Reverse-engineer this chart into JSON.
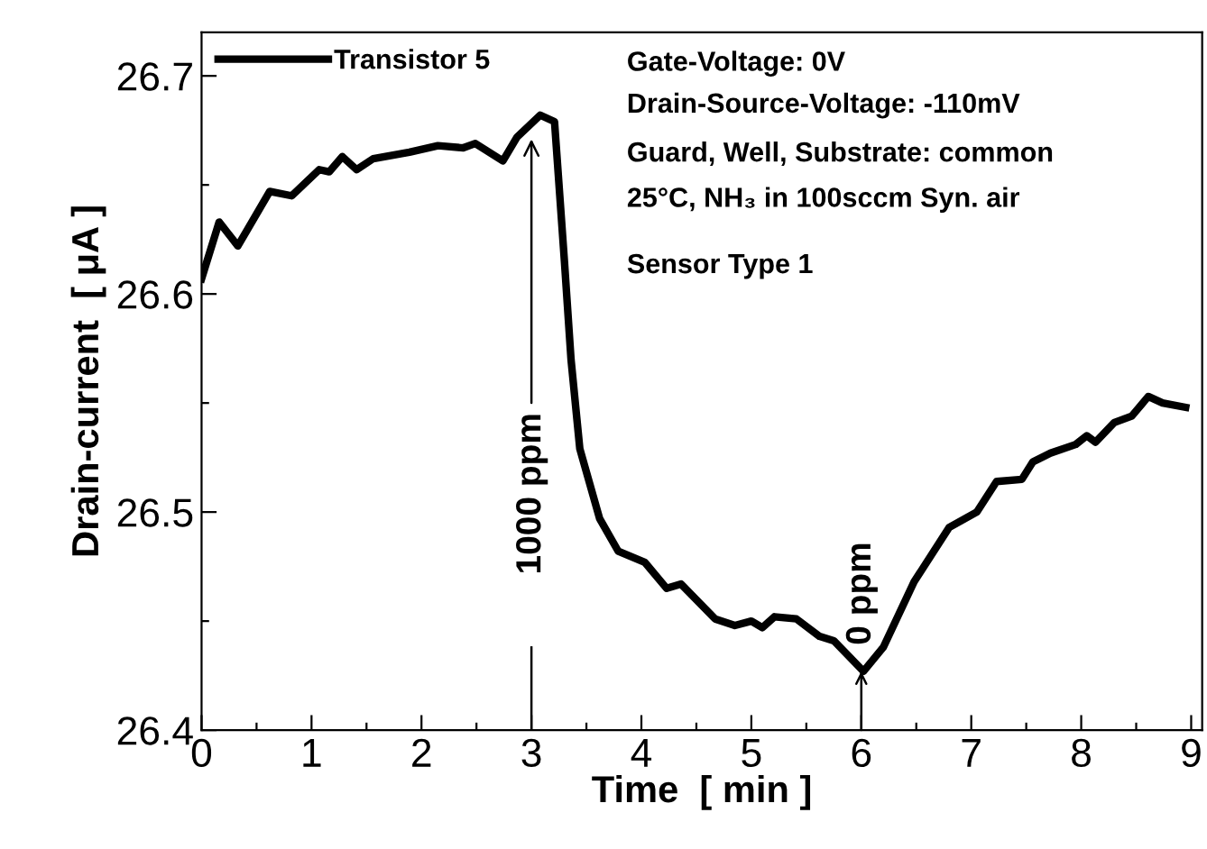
{
  "chart_data": {
    "type": "line",
    "xlabel": "Time  [ min ]",
    "ylabel": "Drain-current  [ μA ]",
    "xlim": [
      0,
      9.1
    ],
    "ylim": [
      26.4,
      26.72
    ],
    "xticks": [
      0,
      {
        "value": 0.5,
        "label": null
      },
      1,
      {
        "value": 1.5,
        "label": null
      },
      2,
      {
        "value": 2.5,
        "label": null
      },
      3,
      {
        "value": 3.5,
        "label": null
      },
      4,
      {
        "value": 4.5,
        "label": null
      },
      5,
      {
        "value": 5.5,
        "label": null
      },
      6,
      {
        "value": 6.5,
        "label": null
      },
      7,
      {
        "value": 7.5,
        "label": null
      },
      8,
      {
        "value": 8.5,
        "label": null
      },
      9
    ],
    "yticks": [
      26.4,
      {
        "value": 26.45,
        "label": null
      },
      26.5,
      {
        "value": 26.55,
        "label": null
      },
      26.6,
      {
        "value": 26.65,
        "label": null
      },
      26.7
    ],
    "grid": false,
    "legend": "top left",
    "marker": "none",
    "line_style": "solid",
    "series": [
      {
        "name": "Transistor 5",
        "color": "#000000",
        "x": [
          0,
          0.16,
          0.33,
          0.62,
          0.82,
          1.07,
          1.16,
          1.28,
          1.41,
          1.56,
          1.89,
          2.15,
          2.38,
          2.49,
          2.74,
          2.87,
          3.08,
          3.21,
          3.3,
          3.36,
          3.44,
          3.62,
          3.79,
          4.03,
          4.23,
          4.36,
          4.67,
          4.85,
          5.0,
          5.1,
          5.21,
          5.41,
          5.62,
          5.75,
          6.02,
          6.2,
          6.48,
          6.8,
          7.05,
          7.23,
          7.46,
          7.56,
          7.72,
          7.95,
          8.05,
          8.13,
          8.3,
          8.46,
          8.61,
          8.74,
          8.95
        ],
        "values": [
          26.607,
          26.633,
          26.622,
          26.647,
          26.645,
          26.657,
          26.656,
          26.663,
          26.657,
          26.662,
          26.665,
          26.668,
          26.667,
          26.669,
          26.661,
          26.672,
          26.682,
          26.679,
          26.615,
          26.57,
          26.529,
          26.497,
          26.482,
          26.477,
          26.465,
          26.467,
          26.451,
          26.448,
          26.45,
          26.447,
          26.452,
          26.451,
          26.443,
          26.441,
          26.427,
          26.438,
          26.468,
          26.493,
          26.5,
          26.514,
          26.515,
          26.523,
          26.527,
          26.531,
          26.535,
          26.532,
          26.541,
          26.544,
          26.553,
          26.55,
          26.548
        ]
      }
    ],
    "annotations": [
      {
        "text": "1000 ppm",
        "x": 3,
        "y": 26.671
      },
      {
        "text": "0 ppm",
        "x": 6,
        "y": 26.427
      },
      "Gate-Voltage: 0V",
      "Drain-Source-Voltage: -110mV",
      "Guard, Well, Substrate: common",
      "25°C, NH₃ in 100sccm Syn. air",
      "Sensor Type 1"
    ]
  }
}
